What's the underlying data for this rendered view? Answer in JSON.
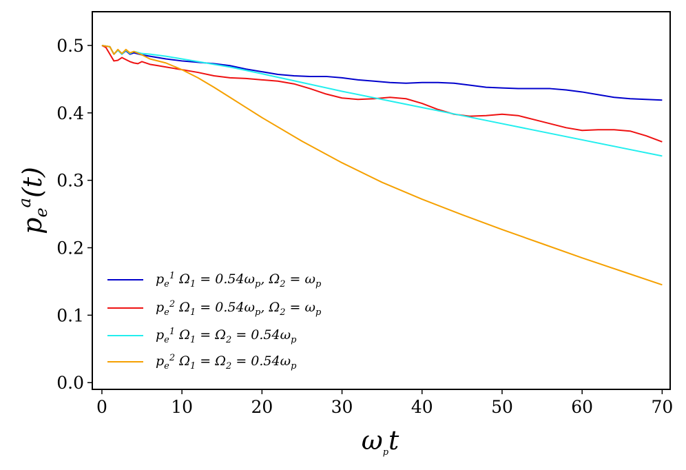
{
  "chart_data": {
    "type": "line",
    "title": "",
    "xlabel": "ωpt",
    "ylabel": "pea(t)",
    "xlim": [
      -1.2,
      71
    ],
    "ylim": [
      -0.01,
      0.55
    ],
    "xticks": [
      0,
      10,
      20,
      30,
      40,
      50,
      60,
      70
    ],
    "yticks": [
      0.0,
      0.1,
      0.2,
      0.3,
      0.4,
      0.5
    ],
    "xtick_labels": [
      "0",
      "10",
      "20",
      "30",
      "40",
      "50",
      "60",
      "70"
    ],
    "ytick_labels": [
      "0.0",
      "0.1",
      "0.2",
      "0.3",
      "0.4",
      "0.5"
    ],
    "grid": false,
    "legend_position": "lower-left",
    "series": [
      {
        "name": "pe1 Ω1 = 0.54ωp, Ω2 = ωp",
        "color": "#0000cc",
        "x": [
          0,
          1,
          1.5,
          2,
          2.5,
          3,
          3.5,
          4,
          5,
          6,
          8,
          10,
          12,
          14,
          16,
          18,
          20,
          22,
          24,
          26,
          28,
          30,
          32,
          34,
          36,
          38,
          40,
          42,
          44,
          46,
          48,
          50,
          52,
          54,
          56,
          58,
          60,
          62,
          64,
          66,
          68,
          70
        ],
        "values": [
          0.5,
          0.498,
          0.487,
          0.493,
          0.487,
          0.492,
          0.487,
          0.489,
          0.486,
          0.484,
          0.48,
          0.477,
          0.475,
          0.473,
          0.47,
          0.465,
          0.461,
          0.457,
          0.455,
          0.454,
          0.454,
          0.452,
          0.449,
          0.447,
          0.445,
          0.444,
          0.445,
          0.445,
          0.444,
          0.441,
          0.438,
          0.437,
          0.436,
          0.436,
          0.436,
          0.434,
          0.431,
          0.427,
          0.423,
          0.421,
          0.42,
          0.419
        ]
      },
      {
        "name": "pe2 Ω1 = 0.54ωp, Ω2 = ωp",
        "color": "#ee1111",
        "x": [
          0,
          0.5,
          1,
          1.5,
          2,
          2.5,
          3,
          3.5,
          4,
          4.5,
          5,
          6,
          7,
          8,
          9,
          10,
          12,
          14,
          16,
          18,
          20,
          22,
          24,
          26,
          28,
          30,
          32,
          34,
          36,
          38,
          40,
          42,
          44,
          46,
          48,
          50,
          52,
          54,
          56,
          58,
          60,
          62,
          64,
          66,
          68,
          70
        ],
        "values": [
          0.5,
          0.497,
          0.487,
          0.477,
          0.478,
          0.482,
          0.479,
          0.476,
          0.474,
          0.473,
          0.476,
          0.472,
          0.47,
          0.468,
          0.466,
          0.464,
          0.46,
          0.455,
          0.452,
          0.451,
          0.449,
          0.447,
          0.443,
          0.436,
          0.428,
          0.422,
          0.42,
          0.421,
          0.423,
          0.421,
          0.414,
          0.405,
          0.398,
          0.395,
          0.396,
          0.398,
          0.396,
          0.39,
          0.384,
          0.378,
          0.374,
          0.375,
          0.375,
          0.373,
          0.366,
          0.357
        ]
      },
      {
        "name": "pe1 Ω1 = Ω2 = 0.54ωp",
        "color": "#22eeee",
        "x": [
          0,
          1,
          1.5,
          2,
          2.5,
          3,
          3.5,
          4,
          5,
          6,
          8,
          10,
          12,
          14,
          16,
          18,
          20,
          25,
          30,
          35,
          40,
          45,
          50,
          55,
          60,
          65,
          70
        ],
        "values": [
          0.5,
          0.498,
          0.487,
          0.493,
          0.487,
          0.493,
          0.488,
          0.491,
          0.488,
          0.487,
          0.484,
          0.48,
          0.476,
          0.472,
          0.468,
          0.463,
          0.458,
          0.445,
          0.432,
          0.42,
          0.408,
          0.396,
          0.384,
          0.372,
          0.36,
          0.348,
          0.336
        ]
      },
      {
        "name": "pe2 Ω1 = Ω2 = 0.54ωp",
        "color": "#f5a000",
        "x": [
          0,
          1,
          1.5,
          2,
          2.5,
          3,
          3.5,
          4,
          5,
          6,
          8,
          10,
          12,
          14,
          16,
          18,
          20,
          25,
          30,
          35,
          40,
          45,
          50,
          55,
          60,
          65,
          70
        ],
        "values": [
          0.5,
          0.498,
          0.487,
          0.494,
          0.488,
          0.494,
          0.489,
          0.491,
          0.486,
          0.48,
          0.474,
          0.464,
          0.452,
          0.438,
          0.423,
          0.408,
          0.393,
          0.358,
          0.326,
          0.297,
          0.272,
          0.249,
          0.227,
          0.206,
          0.185,
          0.165,
          0.145
        ]
      }
    ]
  }
}
